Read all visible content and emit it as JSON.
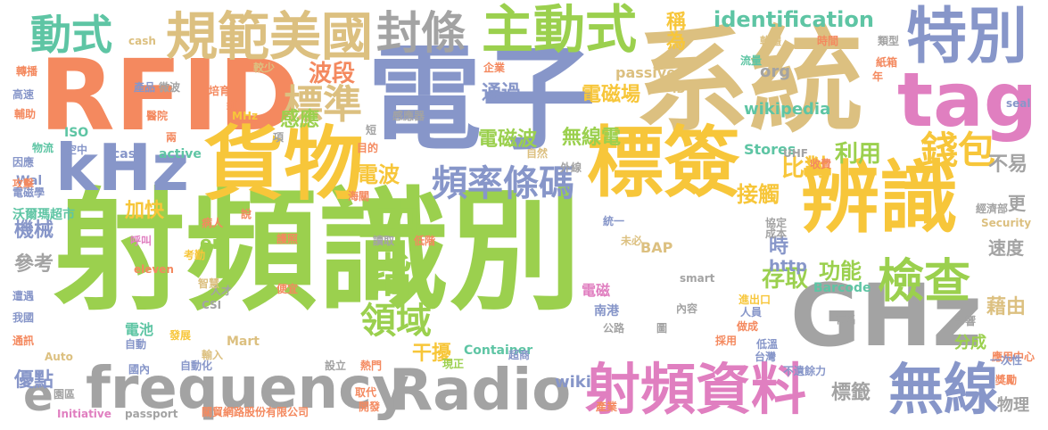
{
  "palette": {
    "green": "#9bd04e",
    "yellow": "#f7c63a",
    "orange": "#f4895f",
    "blue": "#8796c9",
    "tan": "#dcc080",
    "gray": "#a3a3a3",
    "pink": "#e07fc0",
    "teal": "#5ec5a4"
  },
  "words": [
    {
      "text": "射頻識別",
      "color": "green"
    },
    {
      "text": "電子",
      "color": "blue"
    },
    {
      "text": "系統",
      "color": "tan"
    },
    {
      "text": "RFID",
      "color": "orange"
    },
    {
      "text": "貨物",
      "color": "yellow"
    },
    {
      "text": "辨識",
      "color": "yellow"
    },
    {
      "text": "標簽",
      "color": "yellow"
    },
    {
      "text": "GHz",
      "color": "gray"
    },
    {
      "text": "kHz",
      "color": "blue"
    },
    {
      "text": "tag",
      "color": "pink"
    },
    {
      "text": "特別",
      "color": "blue"
    },
    {
      "text": "frequency",
      "color": "gray"
    },
    {
      "text": "Radio",
      "color": "gray"
    },
    {
      "text": "射頻資料",
      "color": "pink"
    },
    {
      "text": "無線",
      "color": "blue"
    },
    {
      "text": "規範美國",
      "color": "tan"
    },
    {
      "text": "封條",
      "color": "gray"
    },
    {
      "text": "主動式",
      "color": "green"
    },
    {
      "text": "動式",
      "color": "teal"
    },
    {
      "text": "檢查",
      "color": "green"
    },
    {
      "text": "中",
      "color": "green"
    },
    {
      "text": "指",
      "color": "green"
    },
    {
      "text": "頻率條碼",
      "color": "blue"
    },
    {
      "text": "標準",
      "color": "tan"
    },
    {
      "text": "錢包",
      "color": "yellow"
    },
    {
      "text": "領域",
      "color": "green"
    },
    {
      "text": "e",
      "color": "gray"
    },
    {
      "text": "identification",
      "color": "teal"
    },
    {
      "text": "稱為",
      "color": "yellow"
    },
    {
      "text": "比對",
      "color": "yellow"
    },
    {
      "text": "利用",
      "color": "green"
    },
    {
      "text": "波段",
      "color": "orange"
    },
    {
      "text": "通過",
      "color": "blue"
    },
    {
      "text": "電磁場",
      "color": "yellow"
    },
    {
      "text": "電磁波",
      "color": "green"
    },
    {
      "text": "無線電",
      "color": "green"
    },
    {
      "text": "電波",
      "color": "yellow"
    },
    {
      "text": "接觸",
      "color": "yellow"
    },
    {
      "text": "感應",
      "color": "green"
    },
    {
      "text": "加快",
      "color": "yellow"
    },
    {
      "text": "機械",
      "color": "blue"
    },
    {
      "text": "參考",
      "color": "gray"
    },
    {
      "text": "存取",
      "color": "green"
    },
    {
      "text": "功能",
      "color": "green"
    },
    {
      "text": "http",
      "color": "blue"
    },
    {
      "text": "干擾",
      "color": "yellow"
    },
    {
      "text": "優點",
      "color": "blue"
    },
    {
      "text": "wiki",
      "color": "blue"
    },
    {
      "text": "標籤",
      "color": "gray"
    },
    {
      "text": "藉由",
      "color": "tan"
    },
    {
      "text": "不易",
      "color": "gray"
    },
    {
      "text": "速度",
      "color": "gray"
    },
    {
      "text": "更",
      "color": "gray"
    },
    {
      "text": "分成",
      "color": "green"
    },
    {
      "text": "物理",
      "color": "gray"
    },
    {
      "text": "wikipedia",
      "color": "teal"
    },
    {
      "text": "org",
      "color": "gray"
    },
    {
      "text": "passive",
      "color": "tan"
    },
    {
      "text": "Stores",
      "color": "teal"
    },
    {
      "text": "en",
      "color": "green"
    },
    {
      "text": "時",
      "color": "blue"
    },
    {
      "text": "BAP",
      "color": "tan"
    },
    {
      "text": "Barcode",
      "color": "teal"
    },
    {
      "text": "電磁",
      "color": "pink"
    },
    {
      "text": "南港",
      "color": "blue"
    },
    {
      "text": "電池",
      "color": "teal"
    },
    {
      "text": "沃爾瑪超市",
      "color": "teal"
    },
    {
      "text": "cash",
      "color": "tan"
    },
    {
      "text": "ISO",
      "color": "teal"
    },
    {
      "text": "case",
      "color": "blue"
    },
    {
      "text": "active",
      "color": "teal"
    },
    {
      "text": "Wal",
      "color": "blue"
    },
    {
      "text": "eleven",
      "color": "orange"
    },
    {
      "text": "Mart",
      "color": "tan"
    },
    {
      "text": "Container",
      "color": "teal"
    },
    {
      "text": "Auto",
      "color": "tan"
    },
    {
      "text": "Initiative",
      "color": "pink"
    },
    {
      "text": "passport",
      "color": "gray"
    },
    {
      "text": "關貿網路股份有限公司",
      "color": "orange"
    },
    {
      "text": "Security",
      "color": "tan"
    },
    {
      "text": "seal",
      "color": "blue"
    },
    {
      "text": "UHF",
      "color": "gray"
    },
    {
      "text": "smart",
      "color": "gray"
    },
    {
      "text": "CSI",
      "color": "gray"
    },
    {
      "text": "MHz",
      "color": "yellow"
    },
    {
      "text": "ID",
      "color": "tan"
    },
    {
      "text": "應用中心",
      "color": "orange"
    },
    {
      "text": "一次性",
      "color": "blue"
    },
    {
      "text": "不遺餘力",
      "color": "blue"
    },
    {
      "text": "台灣",
      "color": "blue"
    },
    {
      "text": "採用",
      "color": "orange"
    },
    {
      "text": "自動化",
      "color": "blue"
    },
    {
      "text": "發展",
      "color": "yellow"
    },
    {
      "text": "自動",
      "color": "blue"
    },
    {
      "text": "國內",
      "color": "blue"
    },
    {
      "text": "園區",
      "color": "gray"
    },
    {
      "text": "通訊",
      "color": "orange"
    },
    {
      "text": "我國",
      "color": "blue"
    },
    {
      "text": "遭遇",
      "color": "blue"
    },
    {
      "text": "攻擊",
      "color": "orange"
    },
    {
      "text": "電磁學",
      "color": "blue"
    },
    {
      "text": "因應",
      "color": "blue"
    },
    {
      "text": "物流",
      "color": "teal"
    },
    {
      "text": "輔助",
      "color": "orange"
    },
    {
      "text": "高速",
      "color": "blue"
    },
    {
      "text": "轉播",
      "color": "orange"
    },
    {
      "text": "產品",
      "color": "blue"
    },
    {
      "text": "微波",
      "color": "gray"
    },
    {
      "text": "培育",
      "color": "orange"
    },
    {
      "text": "紅",
      "color": "orange"
    },
    {
      "text": "醫院",
      "color": "orange"
    },
    {
      "text": "感應器",
      "color": "gray"
    },
    {
      "text": "空中",
      "color": "blue"
    },
    {
      "text": "兩",
      "color": "orange"
    },
    {
      "text": "項",
      "color": "gray"
    },
    {
      "text": "目的",
      "color": "orange"
    },
    {
      "text": "短",
      "color": "gray"
    },
    {
      "text": "較少",
      "color": "tan"
    },
    {
      "text": "企業",
      "color": "orange"
    },
    {
      "text": "流量",
      "color": "teal"
    },
    {
      "text": "時間",
      "color": "orange"
    },
    {
      "text": "類型",
      "color": "gray"
    },
    {
      "text": "紙箱",
      "color": "orange"
    },
    {
      "text": "年",
      "color": "orange"
    },
    {
      "text": "軟體",
      "color": "tan"
    },
    {
      "text": "經濟部",
      "color": "gray"
    },
    {
      "text": "協定",
      "color": "gray"
    },
    {
      "text": "成本",
      "color": "gray"
    },
    {
      "text": "收費",
      "color": "orange"
    },
    {
      "text": "海關",
      "color": "orange"
    },
    {
      "text": "外線",
      "color": "gray"
    },
    {
      "text": "自然",
      "color": "tan"
    },
    {
      "text": "統一",
      "color": "blue"
    },
    {
      "text": "說",
      "color": "orange"
    },
    {
      "text": "病人",
      "color": "orange"
    },
    {
      "text": "護照",
      "color": "orange"
    },
    {
      "text": "讀取",
      "color": "gray"
    },
    {
      "text": "低階",
      "color": "orange"
    },
    {
      "text": "未必",
      "color": "tan"
    },
    {
      "text": "呼叫",
      "color": "pink"
    },
    {
      "text": "考勤",
      "color": "yellow"
    },
    {
      "text": "人才",
      "color": "gray"
    },
    {
      "text": "便宜",
      "color": "orange"
    },
    {
      "text": "智慧",
      "color": "tan"
    },
    {
      "text": "輸入",
      "color": "tan"
    },
    {
      "text": "熱門",
      "color": "orange"
    },
    {
      "text": "設立",
      "color": "gray"
    },
    {
      "text": "現正",
      "color": "green"
    },
    {
      "text": "超商",
      "color": "blue"
    },
    {
      "text": "取代",
      "color": "orange"
    },
    {
      "text": "開發",
      "color": "orange"
    },
    {
      "text": "產業",
      "color": "orange"
    },
    {
      "text": "圖",
      "color": "gray"
    },
    {
      "text": "內容",
      "color": "gray"
    },
    {
      "text": "公路",
      "color": "gray"
    },
    {
      "text": "人員",
      "color": "blue"
    },
    {
      "text": "進出口",
      "color": "yellow"
    },
    {
      "text": "做成",
      "color": "orange"
    },
    {
      "text": "低溫",
      "color": "blue"
    },
    {
      "text": "有名",
      "color": "gray"
    },
    {
      "text": "影響",
      "color": "gray"
    },
    {
      "text": "獎勵",
      "color": "orange"
    }
  ]
}
